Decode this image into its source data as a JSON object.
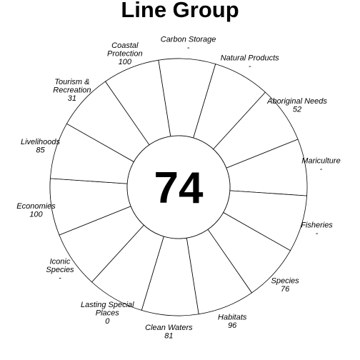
{
  "chart_data": {
    "type": "flower",
    "title": "Line Group",
    "center_score": "74",
    "max_value": 100,
    "petals": [
      {
        "label": [
          "Carbon Storage"
        ],
        "value_text": "-",
        "value": null,
        "color": null
      },
      {
        "label": [
          "Natural Products"
        ],
        "value_text": "-",
        "value": null,
        "color": null
      },
      {
        "label": [
          "Aboriginal Needs"
        ],
        "value_text": "52",
        "value": 52,
        "color": "#e95d4b"
      },
      {
        "label": [
          "Mariculture"
        ],
        "value_text": "-",
        "value": null,
        "color": null
      },
      {
        "label": [
          "Fisheries"
        ],
        "value_text": "-",
        "value": null,
        "color": null
      },
      {
        "label": [
          "Species"
        ],
        "value_text": "76",
        "value": 76,
        "color": "#5d4ea2"
      },
      {
        "label": [
          "Habitats"
        ],
        "value_text": "96",
        "value": 96,
        "color": "#3a89bd"
      },
      {
        "label": [
          "Clean Waters"
        ],
        "value_text": "81",
        "value": 81,
        "color": "#57aaa9"
      },
      {
        "label": [
          "Lasting Special",
          "Places"
        ],
        "value_text": "0",
        "value": 0,
        "color": "#a5d9a0"
      },
      {
        "label": [
          "Iconic",
          "Species"
        ],
        "value_text": "-",
        "value": null,
        "color": null
      },
      {
        "label": [
          "Economies"
        ],
        "value_text": "100",
        "value": 100,
        "color": "#d8ec9c"
      },
      {
        "label": [
          "Livelihoods"
        ],
        "value_text": "85",
        "value": 85,
        "color": "#f6e48f"
      },
      {
        "label": [
          "Tourism &",
          "Recreation"
        ],
        "value_text": "31",
        "value": 31,
        "color": "#fbce7e"
      },
      {
        "label": [
          "Coastal",
          "Protection"
        ],
        "value_text": "100",
        "value": 100,
        "color": "#fbb166"
      }
    ]
  }
}
